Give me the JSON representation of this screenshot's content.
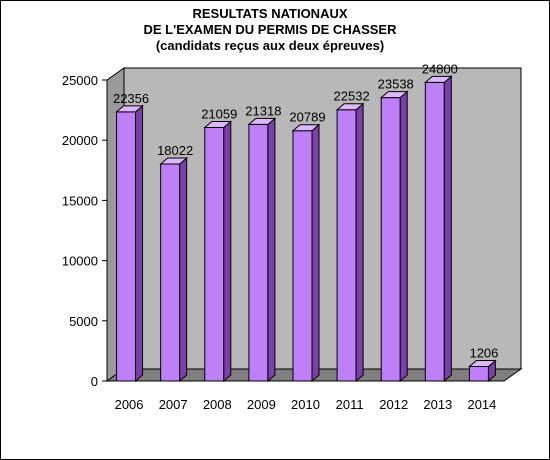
{
  "chart_data": {
    "type": "bar",
    "title_lines": [
      "RESULTATS NATIONAUX",
      "DE L'EXAMEN DU PERMIS DE CHASSER",
      "(candidats reçus aux deux épreuves)"
    ],
    "categories": [
      "2006",
      "2007",
      "2008",
      "2009",
      "2010",
      "2011",
      "2012",
      "2013",
      "2014"
    ],
    "values": [
      22356,
      18022,
      21059,
      21318,
      20789,
      22532,
      23538,
      24800,
      1206
    ],
    "data_labels": [
      "22356",
      "18022",
      "21059",
      "21318",
      "20789",
      "22532",
      "23538",
      "24800",
      "1206"
    ],
    "y_ticks": [
      "0",
      "5000",
      "10000",
      "15000",
      "20000",
      "25000"
    ],
    "y_tick_values": [
      0,
      5000,
      10000,
      15000,
      20000,
      25000
    ],
    "ylim": [
      0,
      25000
    ],
    "xlabel": "",
    "ylabel": "",
    "grid": false,
    "legend": "none",
    "style": "3d-bar",
    "colors": {
      "bar_front": "#bf7ff7",
      "bar_side": "#7a3fa8",
      "bar_top": "#dcb8fb",
      "wall": "#b8b8b8",
      "floor": "#7f7f7f",
      "bar_edge": "#000000"
    }
  }
}
